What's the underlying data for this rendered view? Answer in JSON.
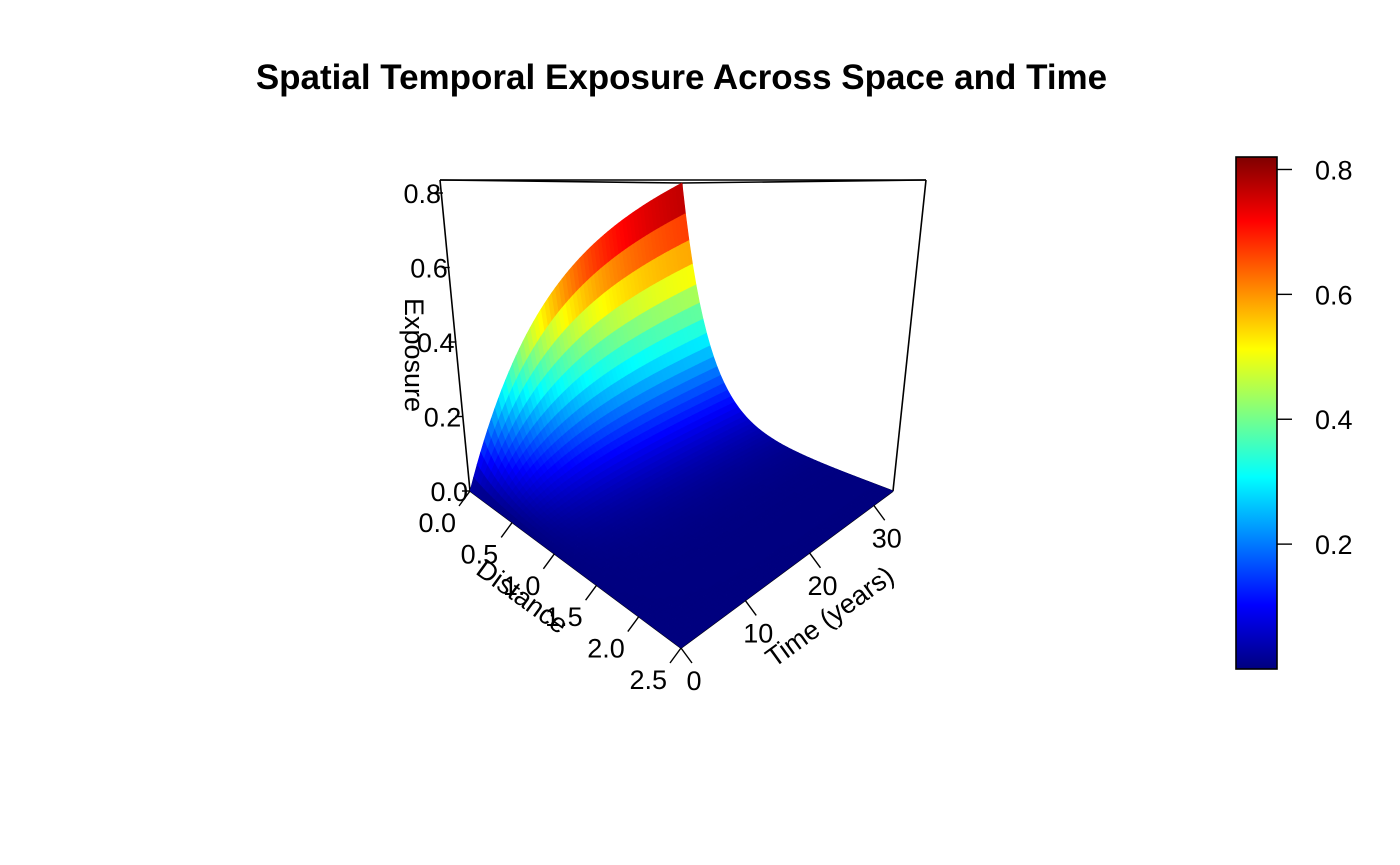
{
  "chart_data": {
    "type": "surface3d",
    "title": "Spatial Temporal Exposure Across Space and Time",
    "axes": {
      "distance": {
        "label": "Distance",
        "range": [
          0,
          2.5
        ],
        "ticks": [
          "0.0",
          "0.5",
          "1.0",
          "1.5",
          "2.0",
          "2.5"
        ],
        "tick_values": [
          0,
          0.5,
          1.0,
          1.5,
          2.0,
          2.5
        ]
      },
      "time": {
        "label": "Time (years)",
        "range": [
          0,
          33
        ],
        "ticks": [
          "0",
          "10",
          "20",
          "30"
        ],
        "tick_values": [
          0,
          10,
          20,
          30
        ]
      },
      "exposure": {
        "label": "Exposure",
        "range": [
          0,
          0.82
        ],
        "ticks": [
          "0.0",
          "0.2",
          "0.4",
          "0.6",
          "0.8"
        ],
        "tick_values": [
          0,
          0.2,
          0.4,
          0.6,
          0.8
        ]
      }
    },
    "surface_profiles": {
      "time_at_distance_0": {
        "time": [
          0,
          3,
          6,
          9,
          12,
          15,
          18,
          21,
          24,
          27,
          30,
          33
        ],
        "exposure": [
          0.0,
          0.25,
          0.44,
          0.57,
          0.66,
          0.72,
          0.76,
          0.785,
          0.8,
          0.81,
          0.815,
          0.82
        ]
      },
      "distance_at_time_max": {
        "distance": [
          0,
          0.25,
          0.5,
          0.75,
          1.0,
          1.25,
          1.5,
          1.75,
          2.0,
          2.25,
          2.5
        ],
        "exposure": [
          0.82,
          0.32,
          0.14,
          0.07,
          0.035,
          0.018,
          0.009,
          0.004,
          0.002,
          0.001,
          0.0
        ]
      }
    },
    "colorbar": {
      "ticks": [
        "0.2",
        "0.4",
        "0.6",
        "0.8"
      ],
      "tick_values": [
        0.2,
        0.4,
        0.6,
        0.8
      ],
      "range": [
        0.0,
        0.82
      ],
      "colors": [
        "#00007f",
        "#0000ff",
        "#0080ff",
        "#00ffff",
        "#80ff80",
        "#ffff00",
        "#ff8000",
        "#ff0000",
        "#7f0000"
      ]
    },
    "grid": false,
    "legend_placement": "right"
  }
}
